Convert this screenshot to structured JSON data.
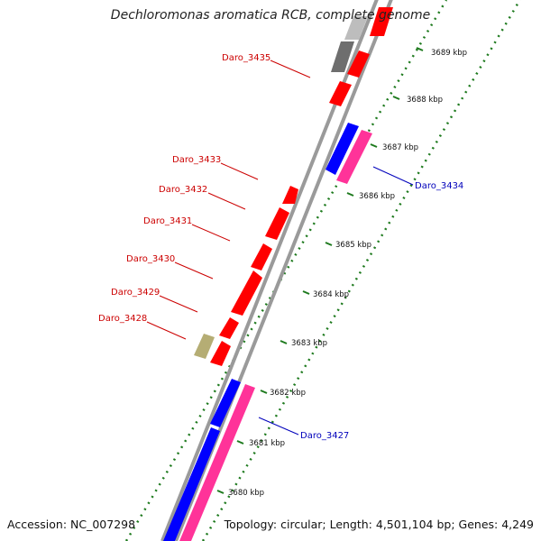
{
  "title": "Dechloromonas aromatica RCB, complete genome",
  "footer": {
    "accession": "Accession: NC_007298",
    "summary": "Topology: circular; Length: 4,501,104 bp; Genes: 4,249"
  },
  "colors": {
    "forward_gene": "#ff0000",
    "reverse_gene": "#0000ff",
    "pink_gene": "#ff3399",
    "gray_gene": "#777777",
    "olive_gene": "#b5ad74",
    "backbone": "#888888",
    "tick": "#1e7a1e",
    "label_red": "#cc0000",
    "label_blue": "#0000bb"
  },
  "ticks": [
    "3680 kbp",
    "3681 kbp",
    "3682 kbp",
    "3683 kbp",
    "3684 kbp",
    "3685 kbp",
    "3686 kbp",
    "3687 kbp",
    "3688 kbp",
    "3689 kbp"
  ],
  "labels": [
    {
      "name": "Daro_3435",
      "color": "red"
    },
    {
      "name": "Daro_3433",
      "color": "red"
    },
    {
      "name": "Daro_3432",
      "color": "red"
    },
    {
      "name": "Daro_3431",
      "color": "red"
    },
    {
      "name": "Daro_3430",
      "color": "red"
    },
    {
      "name": "Daro_3429",
      "color": "red"
    },
    {
      "name": "Daro_3428",
      "color": "red"
    },
    {
      "name": "Daro_3434",
      "color": "blue"
    },
    {
      "name": "Daro_3427",
      "color": "blue"
    }
  ]
}
